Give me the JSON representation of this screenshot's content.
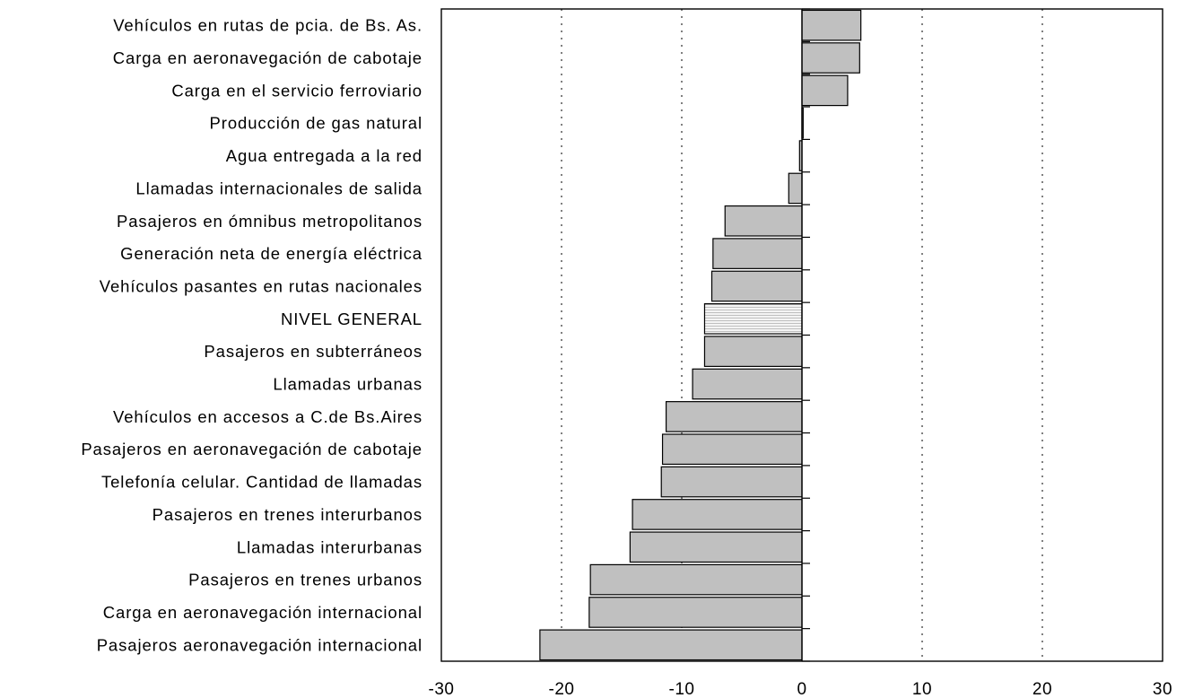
{
  "chart_data": {
    "type": "bar",
    "orientation": "horizontal",
    "title": "",
    "xlabel": "",
    "ylabel": "",
    "xlim": [
      -30,
      30
    ],
    "xticks": [
      -30,
      -20,
      -10,
      0,
      10,
      20,
      30
    ],
    "grid": "vertical dotted",
    "legend": "none",
    "categories": [
      "Vehículos en rutas de pcia. de Bs. As.",
      "Carga en aeronavegación de cabotaje",
      "Carga en el servicio ferroviario",
      "Producción de gas natural",
      "Agua entregada a la red",
      "Llamadas internacionales de salida",
      "Pasajeros en ómnibus metropolitanos",
      "Generación neta de energía eléctrica",
      "Vehículos pasantes en rutas nacionales",
      "NIVEL GENERAL",
      "Pasajeros en subterráneos",
      "Llamadas urbanas",
      "Vehículos en accesos a C.de Bs.Aires",
      "Pasajeros en aeronavegación de cabotaje",
      "Telefonía celular. Cantidad de llamadas",
      "Pasajeros en trenes interurbanos",
      "Llamadas interurbanas",
      "Pasajeros en trenes urbanos",
      "Carga en aeronavegación internacional",
      "Pasajeros aeronavegación internacional"
    ],
    "values": [
      4.9,
      4.8,
      3.8,
      0.1,
      -0.2,
      -1.1,
      -6.4,
      -7.4,
      -7.5,
      -8.1,
      -8.1,
      -9.1,
      -11.3,
      -11.6,
      -11.7,
      -14.1,
      -14.3,
      -17.6,
      -17.7,
      -21.8
    ],
    "highlight_category": "NIVEL GENERAL",
    "colors": {
      "bar": "#c0c0c0",
      "highlight": "#e4e4e4",
      "outline": "#000000"
    }
  }
}
